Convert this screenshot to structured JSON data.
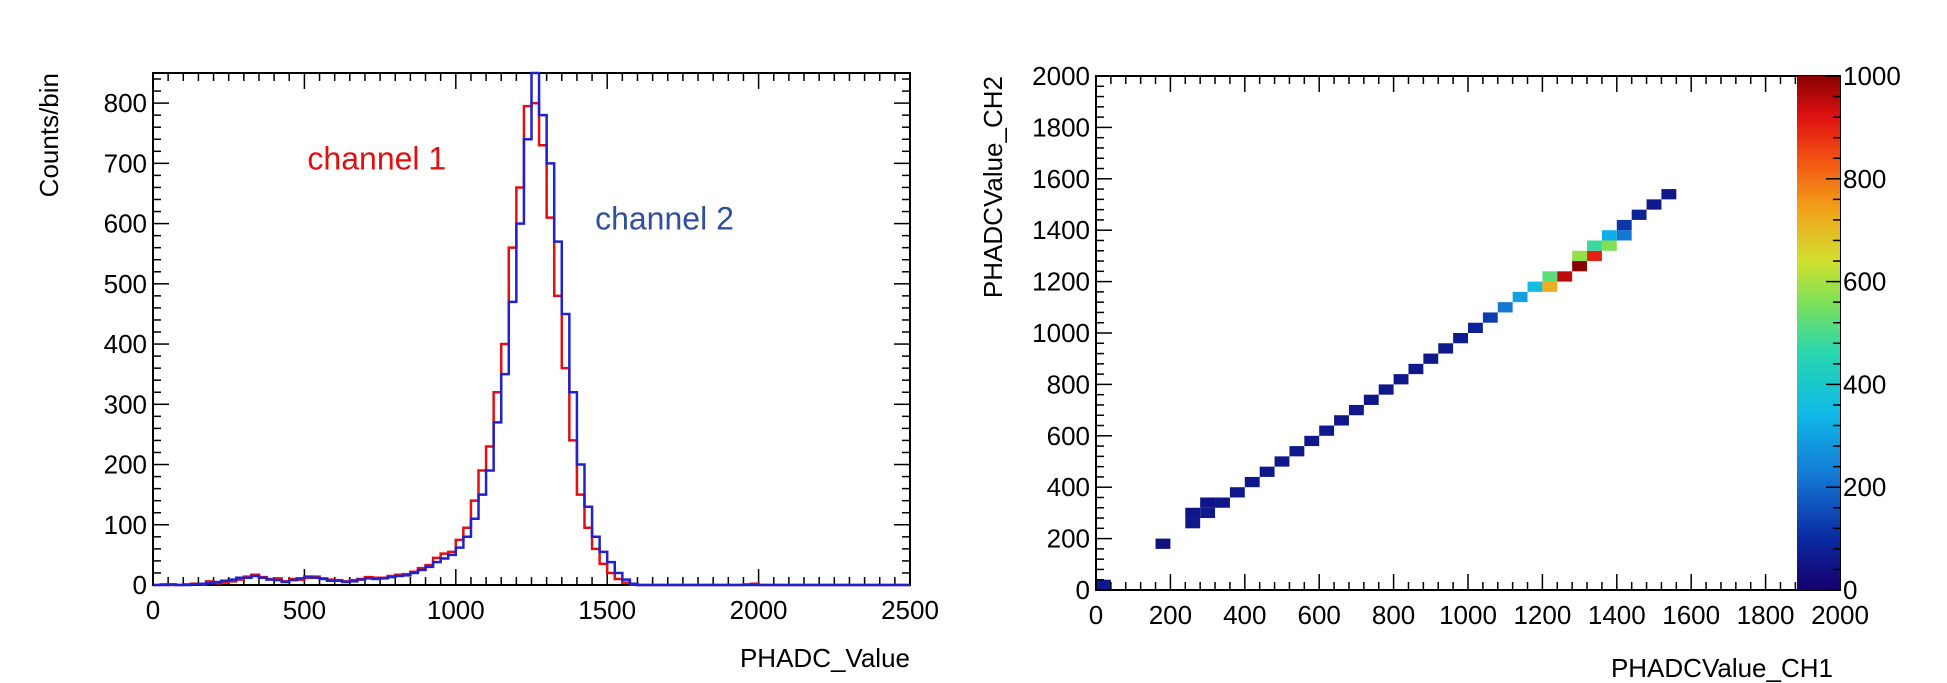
{
  "chart_data": [
    {
      "type": "histogram",
      "xlabel": "PHADC_Value",
      "ylabel": "Counts/bin",
      "xlim": [
        0,
        2500
      ],
      "ylim": [
        0,
        850
      ],
      "x_ticks": [
        0,
        500,
        1000,
        1500,
        2000,
        2500
      ],
      "y_ticks": [
        0,
        100,
        200,
        300,
        400,
        500,
        600,
        700,
        800
      ],
      "bin_width": 25,
      "annotations": [
        {
          "text": "channel 1",
          "color": "#e01010",
          "x": 510,
          "y": 690
        },
        {
          "text": "channel 2",
          "color": "#2f4f9f",
          "x": 1460,
          "y": 590
        }
      ],
      "series": [
        {
          "name": "channel 1",
          "color": "#e01010",
          "bins": [
            [
              0,
              0
            ],
            [
              25,
              1
            ],
            [
              50,
              0
            ],
            [
              75,
              0
            ],
            [
              100,
              1
            ],
            [
              125,
              2
            ],
            [
              150,
              1
            ],
            [
              175,
              6
            ],
            [
              200,
              3
            ],
            [
              225,
              4
            ],
            [
              250,
              6
            ],
            [
              275,
              9
            ],
            [
              300,
              14
            ],
            [
              325,
              17
            ],
            [
              350,
              13
            ],
            [
              375,
              10
            ],
            [
              400,
              11
            ],
            [
              425,
              6
            ],
            [
              450,
              10
            ],
            [
              475,
              9
            ],
            [
              500,
              12
            ],
            [
              525,
              14
            ],
            [
              550,
              11
            ],
            [
              575,
              9
            ],
            [
              600,
              8
            ],
            [
              625,
              6
            ],
            [
              650,
              8
            ],
            [
              675,
              10
            ],
            [
              700,
              13
            ],
            [
              725,
              12
            ],
            [
              750,
              12
            ],
            [
              775,
              15
            ],
            [
              800,
              17
            ],
            [
              825,
              18
            ],
            [
              850,
              22
            ],
            [
              875,
              28
            ],
            [
              900,
              33
            ],
            [
              925,
              45
            ],
            [
              950,
              52
            ],
            [
              975,
              55
            ],
            [
              1000,
              75
            ],
            [
              1025,
              95
            ],
            [
              1050,
              140
            ],
            [
              1075,
              190
            ],
            [
              1100,
              230
            ],
            [
              1125,
              320
            ],
            [
              1150,
              400
            ],
            [
              1175,
              560
            ],
            [
              1200,
              660
            ],
            [
              1225,
              795
            ],
            [
              1250,
              800
            ],
            [
              1275,
              730
            ],
            [
              1300,
              610
            ],
            [
              1325,
              480
            ],
            [
              1350,
              360
            ],
            [
              1375,
              240
            ],
            [
              1400,
              150
            ],
            [
              1425,
              95
            ],
            [
              1450,
              60
            ],
            [
              1475,
              35
            ],
            [
              1500,
              20
            ],
            [
              1525,
              10
            ],
            [
              1550,
              4
            ],
            [
              1575,
              1
            ],
            [
              1600,
              0
            ],
            [
              1625,
              0
            ],
            [
              1650,
              0
            ],
            [
              1675,
              0
            ],
            [
              1700,
              0
            ],
            [
              1725,
              0
            ],
            [
              1750,
              0
            ],
            [
              1775,
              0
            ],
            [
              1800,
              0
            ],
            [
              1825,
              0
            ],
            [
              1850,
              0
            ],
            [
              1875,
              0
            ],
            [
              1900,
              0
            ],
            [
              1925,
              0
            ],
            [
              1950,
              1
            ],
            [
              1975,
              2
            ],
            [
              2000,
              0
            ],
            [
              2025,
              0
            ],
            [
              2050,
              0
            ],
            [
              2075,
              0
            ],
            [
              2100,
              0
            ],
            [
              2125,
              0
            ],
            [
              2150,
              0
            ],
            [
              2175,
              0
            ],
            [
              2200,
              0
            ],
            [
              2225,
              0
            ],
            [
              2250,
              0
            ],
            [
              2275,
              0
            ],
            [
              2300,
              0
            ],
            [
              2325,
              0
            ],
            [
              2350,
              0
            ],
            [
              2375,
              0
            ],
            [
              2400,
              0
            ],
            [
              2425,
              0
            ],
            [
              2450,
              0
            ],
            [
              2475,
              0
            ]
          ]
        },
        {
          "name": "channel 2",
          "color": "#2222cc",
          "bins": [
            [
              0,
              0
            ],
            [
              25,
              0
            ],
            [
              50,
              1
            ],
            [
              75,
              0
            ],
            [
              100,
              0
            ],
            [
              125,
              1
            ],
            [
              150,
              2
            ],
            [
              175,
              3
            ],
            [
              200,
              5
            ],
            [
              225,
              7
            ],
            [
              250,
              9
            ],
            [
              275,
              12
            ],
            [
              300,
              12
            ],
            [
              325,
              15
            ],
            [
              350,
              12
            ],
            [
              375,
              9
            ],
            [
              400,
              8
            ],
            [
              425,
              5
            ],
            [
              450,
              8
            ],
            [
              475,
              11
            ],
            [
              500,
              14
            ],
            [
              525,
              12
            ],
            [
              550,
              10
            ],
            [
              575,
              7
            ],
            [
              600,
              7
            ],
            [
              625,
              5
            ],
            [
              650,
              6
            ],
            [
              675,
              9
            ],
            [
              700,
              11
            ],
            [
              725,
              10
            ],
            [
              750,
              11
            ],
            [
              775,
              13
            ],
            [
              800,
              15
            ],
            [
              825,
              16
            ],
            [
              850,
              20
            ],
            [
              875,
              25
            ],
            [
              900,
              30
            ],
            [
              925,
              38
            ],
            [
              950,
              44
            ],
            [
              975,
              50
            ],
            [
              1000,
              62
            ],
            [
              1025,
              80
            ],
            [
              1050,
              110
            ],
            [
              1075,
              150
            ],
            [
              1100,
              190
            ],
            [
              1125,
              270
            ],
            [
              1150,
              350
            ],
            [
              1175,
              470
            ],
            [
              1200,
              600
            ],
            [
              1225,
              740
            ],
            [
              1250,
              850
            ],
            [
              1275,
              780
            ],
            [
              1300,
              700
            ],
            [
              1325,
              570
            ],
            [
              1350,
              450
            ],
            [
              1375,
              320
            ],
            [
              1400,
              200
            ],
            [
              1425,
              130
            ],
            [
              1450,
              80
            ],
            [
              1475,
              55
            ],
            [
              1500,
              38
            ],
            [
              1525,
              20
            ],
            [
              1550,
              9
            ],
            [
              1575,
              2
            ],
            [
              1600,
              0
            ],
            [
              1625,
              0
            ],
            [
              1650,
              0
            ],
            [
              1675,
              0
            ],
            [
              1700,
              0
            ],
            [
              1725,
              0
            ],
            [
              1750,
              0
            ],
            [
              1775,
              0
            ],
            [
              1800,
              0
            ],
            [
              1825,
              0
            ],
            [
              1850,
              0
            ],
            [
              1875,
              0
            ],
            [
              1900,
              0
            ],
            [
              1925,
              0
            ],
            [
              1950,
              0
            ],
            [
              1975,
              0
            ],
            [
              2000,
              0
            ],
            [
              2025,
              0
            ],
            [
              2050,
              0
            ],
            [
              2075,
              0
            ],
            [
              2100,
              0
            ],
            [
              2125,
              0
            ],
            [
              2150,
              0
            ],
            [
              2175,
              0
            ],
            [
              2200,
              0
            ],
            [
              2225,
              0
            ],
            [
              2250,
              0
            ],
            [
              2275,
              0
            ],
            [
              2300,
              0
            ],
            [
              2325,
              0
            ],
            [
              2350,
              0
            ],
            [
              2375,
              0
            ],
            [
              2400,
              0
            ],
            [
              2425,
              0
            ],
            [
              2450,
              0
            ],
            [
              2475,
              0
            ]
          ]
        }
      ]
    },
    {
      "type": "heatmap",
      "xlabel": "PHADCValue_CH1",
      "ylabel": "PHADCValue_CH2",
      "xlim": [
        0,
        2000
      ],
      "ylim": [
        0,
        2000
      ],
      "x_ticks": [
        0,
        200,
        400,
        600,
        800,
        1000,
        1200,
        1400,
        1600,
        1800,
        2000
      ],
      "y_ticks": [
        0,
        200,
        400,
        600,
        800,
        1000,
        1200,
        1400,
        1600,
        1800,
        2000
      ],
      "zlim": [
        0,
        1000
      ],
      "z_ticks": [
        0,
        200,
        400,
        600,
        800,
        1000
      ],
      "bin_width": 40,
      "cells": [
        [
          0,
          0,
          60
        ],
        [
          160,
          160,
          40
        ],
        [
          240,
          240,
          55
        ],
        [
          240,
          280,
          50
        ],
        [
          280,
          280,
          60
        ],
        [
          280,
          320,
          45
        ],
        [
          320,
          320,
          55
        ],
        [
          360,
          360,
          60
        ],
        [
          400,
          400,
          55
        ],
        [
          440,
          440,
          60
        ],
        [
          480,
          480,
          55
        ],
        [
          520,
          520,
          60
        ],
        [
          560,
          560,
          55
        ],
        [
          600,
          600,
          60
        ],
        [
          640,
          640,
          55
        ],
        [
          680,
          680,
          60
        ],
        [
          720,
          720,
          55
        ],
        [
          760,
          760,
          60
        ],
        [
          800,
          800,
          55
        ],
        [
          840,
          840,
          60
        ],
        [
          880,
          880,
          55
        ],
        [
          920,
          920,
          60
        ],
        [
          960,
          960,
          65
        ],
        [
          1000,
          1000,
          80
        ],
        [
          1040,
          1040,
          130
        ],
        [
          1080,
          1080,
          220
        ],
        [
          1120,
          1120,
          300
        ],
        [
          1160,
          1160,
          360
        ],
        [
          1200,
          1160,
          720
        ],
        [
          1200,
          1200,
          520
        ],
        [
          1240,
          1200,
          950
        ],
        [
          1280,
          1240,
          1000
        ],
        [
          1280,
          1280,
          580
        ],
        [
          1320,
          1280,
          900
        ],
        [
          1320,
          1320,
          480
        ],
        [
          1360,
          1320,
          560
        ],
        [
          1360,
          1360,
          320
        ],
        [
          1400,
          1360,
          220
        ],
        [
          1400,
          1400,
          120
        ],
        [
          1440,
          1440,
          80
        ],
        [
          1480,
          1480,
          60
        ],
        [
          1520,
          1520,
          55
        ]
      ]
    }
  ]
}
